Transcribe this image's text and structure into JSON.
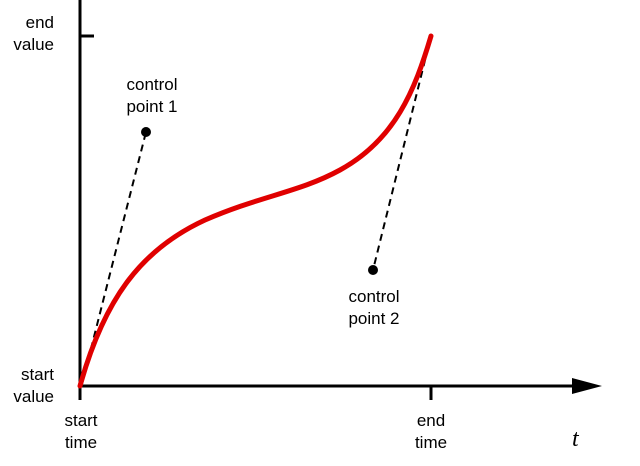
{
  "labels": {
    "end_value": [
      "end",
      "value"
    ],
    "start_value": [
      "start",
      "value"
    ],
    "start_time": [
      "start",
      "time"
    ],
    "end_time": [
      "end",
      "time"
    ],
    "control_point_1": [
      "control",
      "point 1"
    ],
    "control_point_2": [
      "control",
      "point 2"
    ],
    "t_axis": "t"
  },
  "colors": {
    "curve": "#e00000",
    "axes": "#000000",
    "handles": "#000000",
    "points": "#000000"
  }
}
